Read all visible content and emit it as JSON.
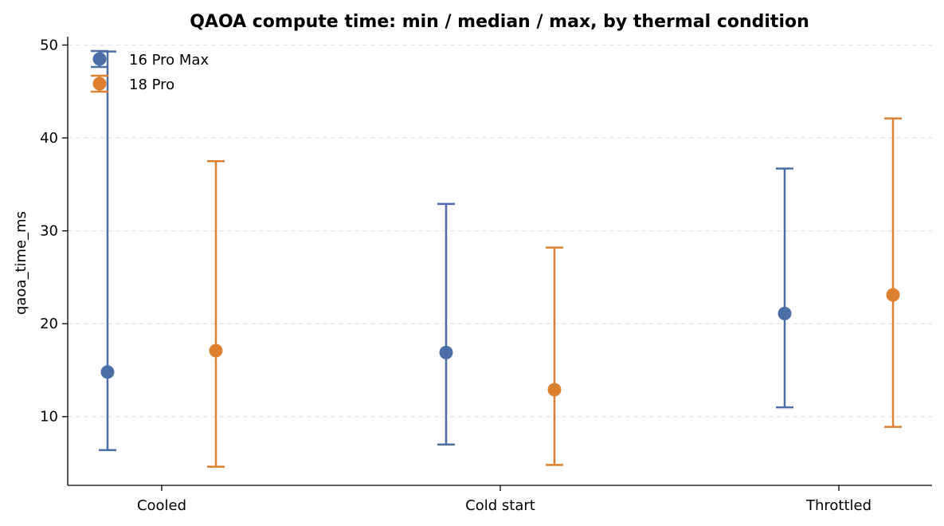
{
  "chart_data": {
    "type": "errorbar",
    "title": "QAOA compute time: min / median / max, by thermal condition",
    "xlabel": "",
    "ylabel": "qaoa_time_ms",
    "categories": [
      "Cooled",
      "Cold start",
      "Throttled"
    ],
    "ylim": [
      2.6,
      50.9
    ],
    "yticks": [
      10,
      20,
      30,
      40,
      50
    ],
    "grid": "y-dashed",
    "legend": "top-left",
    "series": [
      {
        "name": "16 Pro Max",
        "color": "#4a6ea5",
        "min": [
          6.4,
          7.0,
          11.0
        ],
        "median": [
          14.8,
          16.9,
          21.1
        ],
        "max": [
          49.3,
          32.9,
          36.7
        ]
      },
      {
        "name": "18 Pro",
        "color": "#dc8030",
        "min": [
          4.6,
          4.8,
          8.9
        ],
        "median": [
          17.1,
          12.9,
          23.1
        ],
        "max": [
          37.5,
          28.2,
          42.1
        ]
      }
    ]
  }
}
